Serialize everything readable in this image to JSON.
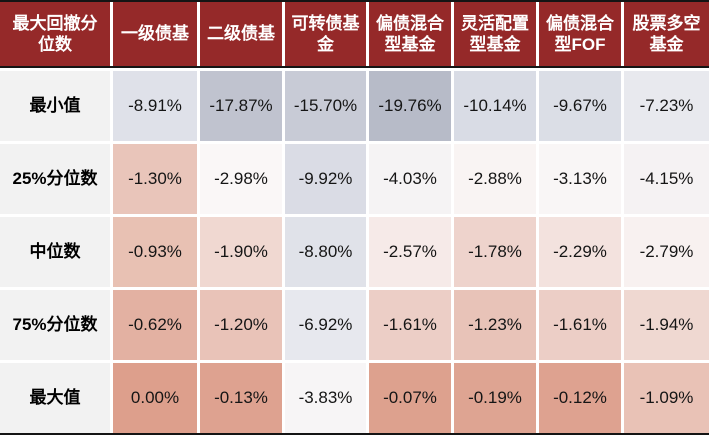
{
  "chart_data": {
    "type": "table",
    "corner_header": "最大回撤分位数",
    "column_headers": [
      "一级债基",
      "二级债基",
      "可转债基金",
      "偏债混合型基金",
      "灵活配置型基金",
      "偏债混合型FOF",
      "股票多空基金"
    ],
    "row_labels": [
      "最小值",
      "25%分位数",
      "中位数",
      "75%分位数",
      "最大值"
    ],
    "rows": [
      {
        "label": "最小值",
        "values": [
          "-8.91%",
          "-17.87%",
          "-15.70%",
          "-19.76%",
          "-10.14%",
          "-9.67%",
          "-7.23%"
        ],
        "cell_colors": [
          "#dfe1e9",
          "#c0c3cf",
          "#c8cbd6",
          "#b7bbc8",
          "#d9dce5",
          "#dbdee6",
          "#e8e9ee"
        ]
      },
      {
        "label": "25%分位数",
        "values": [
          "-1.30%",
          "-2.98%",
          "-9.92%",
          "-4.03%",
          "-2.88%",
          "-3.13%",
          "-4.15%"
        ],
        "cell_colors": [
          "#e9c5ba",
          "#faf7f7",
          "#dadce5",
          "#f5f3f4",
          "#f9f4f3",
          "#f9f6f6",
          "#f5f2f3"
        ]
      },
      {
        "label": "中位数",
        "values": [
          "-0.93%",
          "-1.90%",
          "-8.80%",
          "-2.57%",
          "-1.78%",
          "-2.29%",
          "-2.79%"
        ],
        "cell_colors": [
          "#e8c1b3",
          "#f0d8d1",
          "#e0e2e9",
          "#f6eae8",
          "#eed3cc",
          "#f3e2de",
          "#f8f1f0"
        ]
      },
      {
        "label": "75%分位数",
        "values": [
          "-0.62%",
          "-1.20%",
          "-6.92%",
          "-1.61%",
          "-1.23%",
          "-1.61%",
          "-1.94%"
        ],
        "cell_colors": [
          "#e3b1a2",
          "#e9c3b8",
          "#e7e8ee",
          "#eccec6",
          "#e8c3b8",
          "#eccec6",
          "#efd8d1"
        ]
      },
      {
        "label": "最大值",
        "values": [
          "0.00%",
          "-0.13%",
          "-3.83%",
          "-0.07%",
          "-0.19%",
          "-0.12%",
          "-1.09%"
        ],
        "cell_colors": [
          "#dd9f8c",
          "#dea290",
          "#f7f5f6",
          "#dda18e",
          "#dea492",
          "#dea290",
          "#e9c2b6"
        ]
      }
    ],
    "colors": {
      "header_bg": "#952929",
      "header_text": "#ffffff",
      "label_column_bg": "#f2f2f2",
      "label_text": "#000000",
      "value_text": "#151515",
      "border": "#141414",
      "gap": "#ffffff",
      "heatmap_negative_extreme": "#b7bbc8",
      "heatmap_midpoint": "#faf7f7",
      "heatmap_near_zero": "#dd9f8c"
    },
    "value_unit": "%",
    "layout_hints": "diverging heatmap table: values nearest 0 shaded salmon, most negative values shaded blue-gray; black rules above header, below header and below last row; white gaps between cells"
  }
}
